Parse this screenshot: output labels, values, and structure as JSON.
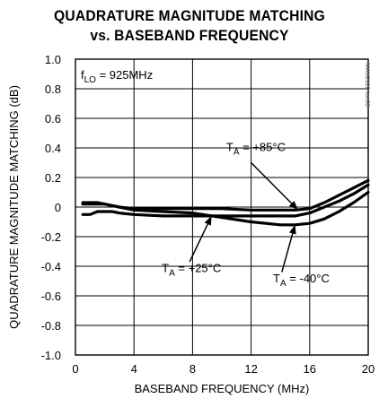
{
  "chart_data": {
    "type": "line",
    "title": "QUADRATURE MAGNITUDE MATCHING",
    "subtitle": "vs. BASEBAND FREQUENCY",
    "xlabel": "BASEBAND FREQUENCY (MHz)",
    "ylabel": "QUADRATURE MAGNITUDE MATCHING (dB)",
    "xlim": [
      0,
      20
    ],
    "ylim": [
      -1.0,
      1.0
    ],
    "x_ticks": [
      0,
      4,
      8,
      12,
      16,
      20
    ],
    "y_ticks": [
      1.0,
      0.8,
      0.6,
      0.4,
      0.2,
      0,
      -0.2,
      -0.4,
      -0.6,
      -0.8,
      -1.0
    ],
    "x_tick_labels": [
      "0",
      "4",
      "8",
      "12",
      "16",
      "20"
    ],
    "y_tick_labels": [
      "1.0",
      "0.8",
      "0.6",
      "0.4",
      "0.2",
      "0",
      "-0.2",
      "-0.4",
      "-0.6",
      "-0.8",
      "-1.0"
    ],
    "grid": true,
    "condition": {
      "main": "f",
      "sub": "LO",
      "rest": " = 925MHz"
    },
    "figure_code": "MAX2112 toc08",
    "series": [
      {
        "name": "TA = +85°C",
        "x": [
          0.5,
          1,
          1.5,
          2,
          2.5,
          3,
          4,
          6,
          8,
          10,
          12,
          14,
          15,
          16,
          17,
          18,
          19,
          20
        ],
        "y": [
          0.02,
          0.02,
          0.02,
          0.02,
          0.01,
          0.0,
          -0.01,
          -0.01,
          -0.01,
          -0.01,
          -0.02,
          -0.02,
          -0.02,
          -0.01,
          0.03,
          0.08,
          0.13,
          0.18
        ]
      },
      {
        "name": "TA = +25°C",
        "x": [
          0.5,
          1,
          1.5,
          2,
          2.5,
          3,
          4,
          6,
          8,
          10,
          12,
          14,
          15,
          16,
          17,
          18,
          19,
          20
        ],
        "y": [
          -0.05,
          -0.05,
          -0.03,
          -0.03,
          -0.03,
          -0.04,
          -0.05,
          -0.06,
          -0.06,
          -0.06,
          -0.06,
          -0.06,
          -0.06,
          -0.04,
          0.0,
          0.04,
          0.09,
          0.15
        ]
      },
      {
        "name": "TA = -40°C",
        "x": [
          0.5,
          1,
          1.5,
          2,
          2.5,
          3,
          4,
          6,
          8,
          10,
          12,
          14,
          15,
          16,
          17,
          18,
          19,
          20
        ],
        "y": [
          0.03,
          0.03,
          0.03,
          0.02,
          0.01,
          0.0,
          -0.02,
          -0.03,
          -0.04,
          -0.07,
          -0.1,
          -0.12,
          -0.12,
          -0.11,
          -0.08,
          -0.03,
          0.03,
          0.1
        ]
      }
    ],
    "annotations": [
      {
        "pre": "T",
        "sub": "A",
        "rest": " = +85°C",
        "series": 0
      },
      {
        "pre": "T",
        "sub": "A",
        "rest": " = +25°C",
        "series": 1
      },
      {
        "pre": "T",
        "sub": "A",
        "rest": " = -40°C",
        "series": 2
      }
    ]
  }
}
